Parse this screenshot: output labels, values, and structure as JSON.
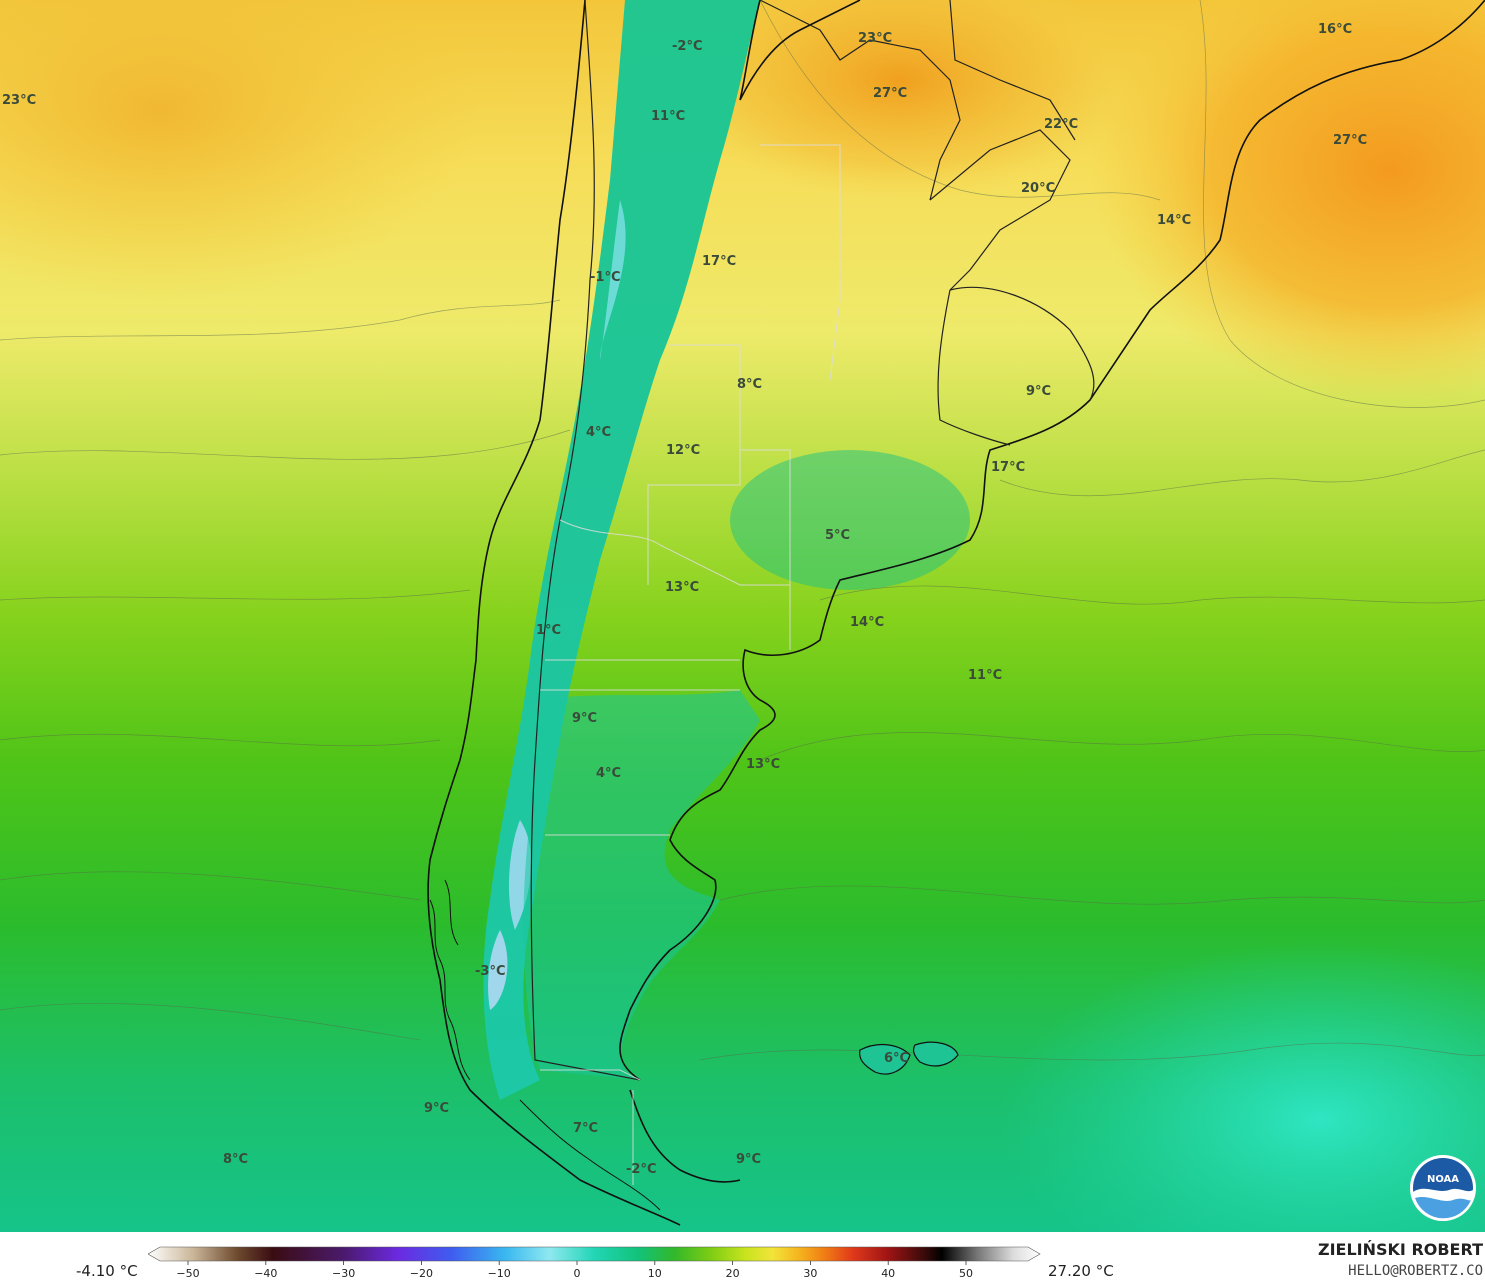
{
  "map": {
    "temperature_labels": [
      {
        "text": "23°C"
      },
      {
        "text": "-2°C"
      },
      {
        "text": "23°C"
      },
      {
        "text": "27°C"
      },
      {
        "text": "16°C"
      },
      {
        "text": "27°C"
      },
      {
        "text": "11°C"
      },
      {
        "text": "22°C"
      },
      {
        "text": "20°C"
      },
      {
        "text": "14°C"
      },
      {
        "text": "17°C"
      },
      {
        "text": "-1°C"
      },
      {
        "text": "8°C"
      },
      {
        "text": "9°C"
      },
      {
        "text": "4°C"
      },
      {
        "text": "12°C"
      },
      {
        "text": "17°C"
      },
      {
        "text": "5°C"
      },
      {
        "text": "13°C"
      },
      {
        "text": "1°C"
      },
      {
        "text": "14°C"
      },
      {
        "text": "11°C"
      },
      {
        "text": "9°C"
      },
      {
        "text": "4°C"
      },
      {
        "text": "13°C"
      },
      {
        "text": "-3°C"
      },
      {
        "text": "6°C"
      },
      {
        "text": "9°C"
      },
      {
        "text": "7°C"
      },
      {
        "text": "8°C"
      },
      {
        "text": "-2°C"
      },
      {
        "text": "9°C"
      }
    ],
    "logo": {
      "icon": "noaa-logo-icon",
      "text": "NOAA"
    }
  },
  "legend": {
    "min_label": "-4.10 °C",
    "max_label": "27.20 °C",
    "ticks": [
      "−50",
      "−40",
      "−30",
      "−20",
      "−10",
      "0",
      "10",
      "20",
      "30",
      "40",
      "50"
    ],
    "colors": [
      "#ffffff",
      "#cbb79a",
      "#6e4a2e",
      "#3a0c12",
      "#4b1a6e",
      "#6b2ae0",
      "#3f5cf0",
      "#39b7f0",
      "#8fe8f0",
      "#22d6b6",
      "#12c27a",
      "#32b82a",
      "#7ccc14",
      "#c8e41e",
      "#f2e43a",
      "#f5b41e",
      "#f07a14",
      "#e0391a",
      "#9e1414",
      "#3a0a0a",
      "#000000",
      "#777777",
      "#dcdcdc",
      "#ffffff"
    ]
  },
  "credit": {
    "name": "ZIELIŃSKI ROBERT",
    "email": "HELLO@ROBERTZ.CO"
  }
}
